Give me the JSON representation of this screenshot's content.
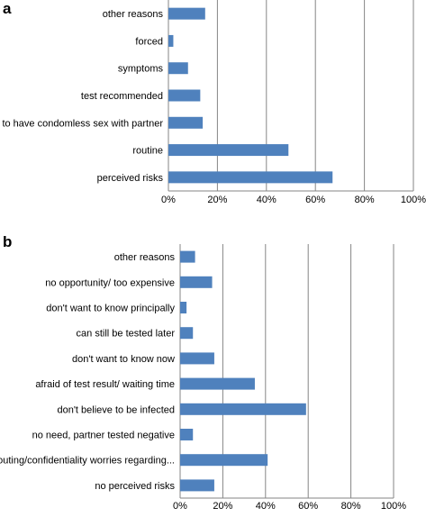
{
  "colors": {
    "bar": "#4f81bd",
    "grid": "#868686",
    "axis": "#868686"
  },
  "chart_data": [
    {
      "type": "bar",
      "orientation": "horizontal",
      "panel_label": "a",
      "title": "",
      "xlabel": "",
      "ylabel": "",
      "xlim": [
        0,
        100
      ],
      "x_ticks": [
        "0%",
        "20%",
        "40%",
        "60%",
        "80%",
        "100%"
      ],
      "grid": "vertical",
      "legend": "none",
      "categories": [
        "other reasons",
        "forced",
        "symptoms",
        "test recommended",
        "to have condomless sex with partner",
        "routine",
        "perceived risks"
      ],
      "values": [
        15,
        2,
        8,
        13,
        14,
        49,
        67
      ]
    },
    {
      "type": "bar",
      "orientation": "horizontal",
      "panel_label": "b",
      "title": "",
      "xlabel": "",
      "ylabel": "",
      "xlim": [
        0,
        100
      ],
      "x_ticks": [
        "0%",
        "20%",
        "40%",
        "60%",
        "80%",
        "100%"
      ],
      "grid": "vertical",
      "legend": "none",
      "categories": [
        "other reasons",
        "no opportunity/ too expensive",
        "don't want to know principally",
        "can still be tested later",
        "don't want to know now",
        "afraid of test result/ waiting time",
        "don't believe to be infected",
        "no need, partner tested negative",
        "outing/confidentiality worries regarding...",
        "no perceived risks"
      ],
      "values": [
        7,
        15,
        3,
        6,
        16,
        35,
        59,
        6,
        41,
        16
      ]
    }
  ]
}
